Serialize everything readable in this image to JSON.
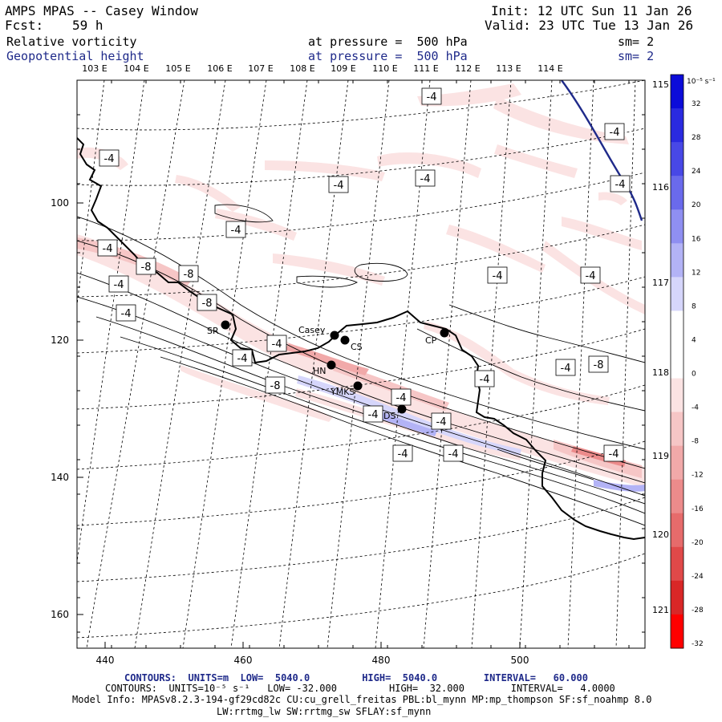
{
  "header": {
    "title": "AMPS MPAS -- Casey Window",
    "fcst_label": "Fcst:",
    "fcst_value": "59 h",
    "init": "Init: 12 UTC Sun 11 Jan 26",
    "valid": "Valid: 23 UTC Tue 13 Jan 26",
    "field1": {
      "name": "Relative vorticity",
      "level": "at pressure =  500 hPa",
      "sm": "sm= 2"
    },
    "field2": {
      "name": "Geopotential height",
      "level": "at pressure =  500 hPa",
      "sm": "sm= 2"
    }
  },
  "map": {
    "x_ticks": [
      "440",
      "460",
      "480",
      "500"
    ],
    "y_ticks": [
      "100",
      "120",
      "140",
      "160"
    ],
    "lon_labels_top": [
      "103 E",
      "104 E",
      "105 E",
      "106 E",
      "107 E",
      "108 E",
      "109 E",
      "110 E",
      "111 E",
      "112 E",
      "113 E",
      "114 E"
    ],
    "lon_labels_right": [
      "115 E",
      "116 E",
      "117 E",
      "118 E",
      "119 E",
      "120 E",
      "121 E"
    ],
    "contour_labels": [
      "-4",
      "-4",
      "-4",
      "-4",
      "-4",
      "-4",
      "-4",
      "-4",
      "-8",
      "-8",
      "-4",
      "-4",
      "-4",
      "-4",
      "-8",
      "-4",
      "-4",
      "-4",
      "-4",
      "-8",
      "-8",
      "-4",
      "-4",
      "-4",
      "-4",
      "-4",
      "-4"
    ],
    "stations": [
      {
        "name": "Casey"
      },
      {
        "name": "CS"
      },
      {
        "name": "SR"
      },
      {
        "name": "CP"
      },
      {
        "name": "HN"
      },
      {
        "name": "YMKS"
      },
      {
        "name": "DS"
      }
    ]
  },
  "colorbar": {
    "unit": "10⁻⁵ s⁻¹",
    "tick_labels": [
      "32",
      "28",
      "24",
      "20",
      "16",
      "12",
      "8",
      "4",
      "0",
      "-4",
      "-8",
      "-12",
      "-16",
      "-20",
      "-24",
      "-28",
      "-32"
    ],
    "colors": [
      "#0c0cd9",
      "#2a2ae0",
      "#4848e6",
      "#6a6aec",
      "#8f8ff1",
      "#b3b3f6",
      "#d6d6fb",
      "#ffffff",
      "#ffffff",
      "#fbe3e3",
      "#f6c6c6",
      "#f1a9a9",
      "#ec8b8b",
      "#e66b6b",
      "#e04949",
      "#d92727",
      "#ff0000"
    ]
  },
  "footer": {
    "line1": "CONTOURS:  UNITS=m  LOW=  5040.0         HIGH=  5040.0        INTERVAL=   60.000",
    "line2": "CONTOURS:  UNITS=10⁻⁵ s⁻¹   LOW= -32.000         HIGH=  32.000        INTERVAL=   4.0000",
    "line3": "Model Info: MPASv8.2.3-194-gf29cd82c CU:cu_grell_freitas PBL:bl_mynn MP:mp_thompson SF:sf_noahmp 8.0",
    "line4": "LW:rrtmg_lw SW:rrtmg_sw SFLAY:sf_mynn"
  }
}
